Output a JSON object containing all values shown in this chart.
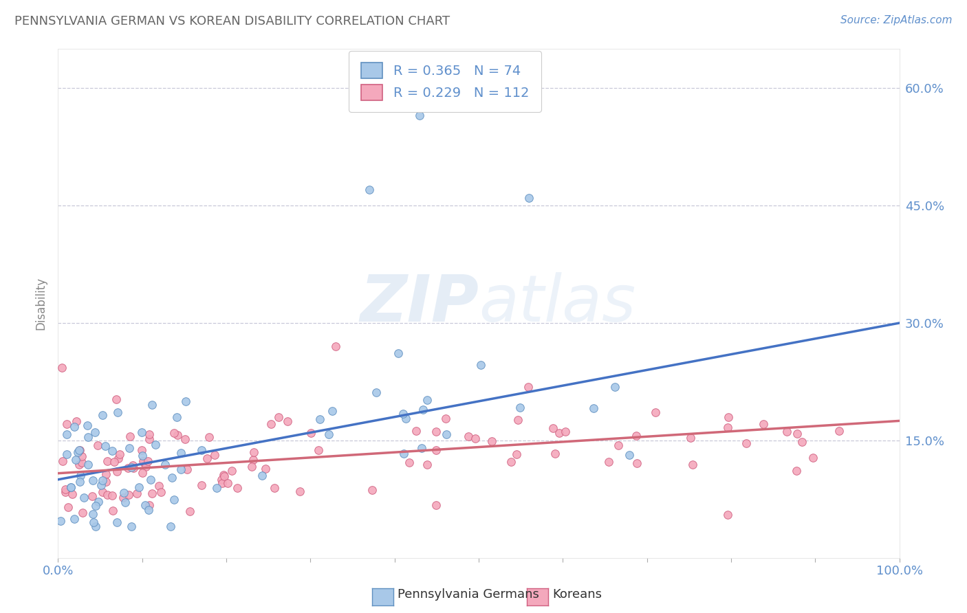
{
  "title": "PENNSYLVANIA GERMAN VS KOREAN DISABILITY CORRELATION CHART",
  "source": "Source: ZipAtlas.com",
  "ylabel": "Disability",
  "yticks": [
    0.0,
    0.15,
    0.3,
    0.45,
    0.6
  ],
  "ytick_labels": [
    "",
    "15.0%",
    "30.0%",
    "45.0%",
    "60.0%"
  ],
  "xlim": [
    0.0,
    1.0
  ],
  "ylim": [
    0.0,
    0.65
  ],
  "blue_R": 0.365,
  "blue_N": 74,
  "pink_R": 0.229,
  "pink_N": 112,
  "blue_color": "#A8C8E8",
  "pink_color": "#F4A8BC",
  "blue_edge": "#6090C0",
  "pink_edge": "#D06080",
  "blue_line_color": "#4472C4",
  "pink_line_color": "#D06878",
  "legend_label_blue": "Pennsylvania Germans",
  "legend_label_pink": "Koreans",
  "blue_trend_y0": 0.1,
  "blue_trend_y1": 0.3,
  "pink_trend_y0": 0.108,
  "pink_trend_y1": 0.175,
  "bg_color": "#FFFFFF",
  "grid_color": "#C8C8D8",
  "tick_label_color": "#6090CC",
  "title_color": "#666666",
  "axis_label_color": "#888888"
}
